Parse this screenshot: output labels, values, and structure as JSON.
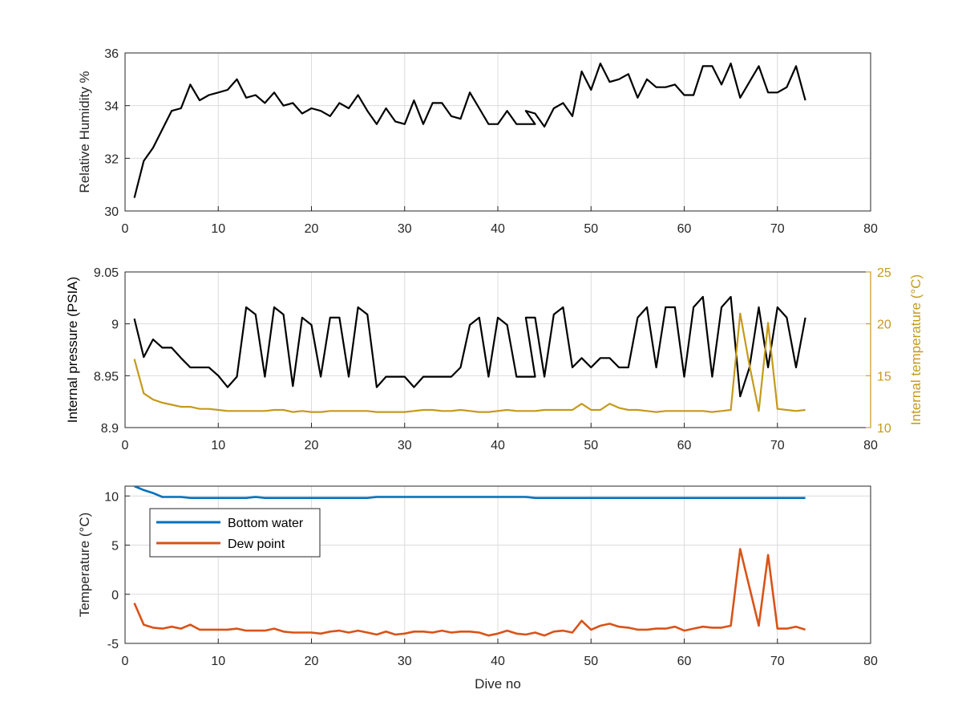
{
  "chart_data": [
    {
      "type": "line",
      "xlabel": "",
      "ylabel": "Relative Humidity %",
      "xlim": [
        0,
        80
      ],
      "ylim": [
        30,
        36
      ],
      "xticks": [
        "0",
        "10",
        "20",
        "30",
        "40",
        "50",
        "60",
        "70",
        "80"
      ],
      "yticks": [
        "30",
        "32",
        "34",
        "36"
      ],
      "grid": true,
      "colors": {
        "rh": "#000000"
      },
      "series": [
        {
          "key": "rh",
          "x": [
            1,
            2,
            3,
            4,
            5,
            6,
            7,
            8,
            9,
            10,
            11,
            12,
            13,
            14,
            15,
            16,
            17,
            18,
            19,
            20,
            21,
            22,
            23,
            24,
            25,
            26,
            27,
            28,
            29,
            30,
            31,
            32,
            33,
            34,
            35,
            36,
            37,
            38,
            39,
            40,
            41,
            42,
            43,
            44,
            43,
            44,
            45,
            46,
            47,
            48,
            49,
            50,
            51,
            52,
            53,
            54,
            55,
            56,
            57,
            58,
            59,
            60,
            61,
            62,
            63,
            64,
            65,
            66,
            67,
            68,
            69,
            70,
            71,
            72,
            73
          ],
          "y": [
            30.5,
            31.9,
            32.4,
            33.1,
            33.8,
            33.9,
            34.8,
            34.2,
            34.4,
            34.5,
            34.6,
            35.0,
            34.3,
            34.4,
            34.1,
            34.5,
            34.0,
            34.1,
            33.7,
            33.9,
            33.8,
            33.6,
            34.1,
            33.9,
            34.4,
            33.8,
            33.3,
            33.9,
            33.4,
            33.3,
            34.2,
            33.3,
            34.1,
            34.1,
            33.6,
            33.5,
            34.5,
            33.9,
            33.3,
            33.3,
            33.8,
            33.3,
            33.3,
            33.3,
            33.8,
            33.7,
            33.2,
            33.9,
            34.1,
            33.6,
            35.3,
            34.6,
            35.6,
            34.9,
            35.0,
            35.2,
            34.3,
            35.0,
            34.7,
            34.7,
            34.8,
            34.4,
            34.4,
            35.5,
            35.5,
            34.8,
            35.6,
            34.3,
            34.9,
            35.5,
            34.5,
            34.5,
            34.7,
            35.5,
            34.2
          ]
        }
      ]
    },
    {
      "type": "line",
      "xlabel": "",
      "ylabel": "Internal pressure (PSIA)",
      "y2label": "Internal temperature (°C)",
      "xlim": [
        0,
        80
      ],
      "ylim": [
        8.9,
        9.05
      ],
      "y2lim": [
        10,
        25
      ],
      "xticks": [
        "0",
        "10",
        "20",
        "30",
        "40",
        "50",
        "60",
        "70",
        "80"
      ],
      "yticks": [
        "8.9",
        "8.95",
        "9",
        "9.05"
      ],
      "y2ticks": [
        "10",
        "15",
        "20",
        "25"
      ],
      "grid": true,
      "colors": {
        "pressure": "#000000",
        "temperature": "#c59a1a"
      },
      "series": [
        {
          "key": "pressure",
          "axis": "left",
          "x": [
            1,
            2,
            3,
            4,
            5,
            6,
            7,
            8,
            9,
            10,
            11,
            12,
            13,
            14,
            15,
            16,
            17,
            18,
            19,
            20,
            21,
            22,
            23,
            24,
            25,
            26,
            27,
            28,
            29,
            30,
            31,
            32,
            33,
            34,
            35,
            36,
            37,
            38,
            39,
            40,
            41,
            42,
            43,
            44,
            43,
            44,
            45,
            46,
            47,
            48,
            49,
            50,
            51,
            52,
            53,
            54,
            55,
            56,
            57,
            58,
            59,
            60,
            61,
            62,
            63,
            64,
            65,
            66,
            67,
            68,
            69,
            70,
            71,
            72,
            73
          ],
          "y": [
            9.005,
            8.968,
            8.985,
            8.977,
            8.977,
            8.967,
            8.958,
            8.958,
            8.958,
            8.95,
            8.939,
            8.949,
            9.016,
            9.009,
            8.949,
            9.016,
            9.009,
            8.94,
            9.006,
            8.999,
            8.949,
            9.006,
            9.006,
            8.949,
            9.016,
            9.009,
            8.939,
            8.949,
            8.949,
            8.949,
            8.939,
            8.949,
            8.949,
            8.949,
            8.949,
            8.958,
            8.999,
            9.006,
            8.949,
            9.006,
            8.999,
            8.949,
            8.949,
            8.949,
            9.006,
            9.006,
            8.949,
            9.009,
            9.016,
            8.958,
            8.967,
            8.958,
            8.967,
            8.967,
            8.958,
            8.958,
            9.006,
            9.016,
            8.958,
            9.016,
            9.016,
            8.949,
            9.016,
            9.026,
            8.949,
            9.016,
            9.026,
            8.93,
            8.958,
            9.016,
            8.958,
            9.016,
            9.006,
            8.958,
            9.006
          ]
        },
        {
          "key": "temperature",
          "axis": "right",
          "x": [
            1,
            2,
            3,
            4,
            5,
            6,
            7,
            8,
            9,
            10,
            11,
            12,
            13,
            14,
            15,
            16,
            17,
            18,
            19,
            20,
            21,
            22,
            23,
            24,
            25,
            26,
            27,
            28,
            29,
            30,
            31,
            32,
            33,
            34,
            35,
            36,
            37,
            38,
            39,
            40,
            41,
            42,
            43,
            44,
            45,
            46,
            47,
            48,
            49,
            50,
            51,
            52,
            53,
            54,
            55,
            56,
            57,
            58,
            59,
            60,
            61,
            62,
            63,
            64,
            65,
            66,
            67,
            68,
            69,
            70,
            71,
            72,
            73
          ],
          "y": [
            16.6,
            13.3,
            12.7,
            12.4,
            12.2,
            12.0,
            12.0,
            11.8,
            11.8,
            11.7,
            11.6,
            11.6,
            11.6,
            11.6,
            11.6,
            11.7,
            11.7,
            11.5,
            11.6,
            11.5,
            11.5,
            11.6,
            11.6,
            11.6,
            11.6,
            11.6,
            11.5,
            11.5,
            11.5,
            11.5,
            11.6,
            11.7,
            11.7,
            11.6,
            11.6,
            11.7,
            11.6,
            11.5,
            11.5,
            11.6,
            11.7,
            11.6,
            11.6,
            11.6,
            11.7,
            11.7,
            11.7,
            11.7,
            12.3,
            11.7,
            11.7,
            12.3,
            11.9,
            11.7,
            11.7,
            11.6,
            11.5,
            11.6,
            11.6,
            11.6,
            11.6,
            11.6,
            11.5,
            11.6,
            11.7,
            21.0,
            16.0,
            11.6,
            20.1,
            11.8,
            11.7,
            11.6,
            11.7
          ]
        }
      ]
    },
    {
      "type": "line",
      "xlabel": "Dive no",
      "ylabel": "Temperature (°C)",
      "xlim": [
        0,
        80
      ],
      "ylim": [
        -5,
        11
      ],
      "xticks": [
        "0",
        "10",
        "20",
        "30",
        "40",
        "50",
        "60",
        "70",
        "80"
      ],
      "yticks": [
        "-5",
        "0",
        "5",
        "10"
      ],
      "grid": true,
      "legend_position": "top-left",
      "colors": {
        "bottom": "#0072bd",
        "dew": "#d95319"
      },
      "series": [
        {
          "key": "bottom",
          "name": "Bottom water",
          "x": [
            1,
            2,
            3,
            4,
            5,
            6,
            7,
            8,
            9,
            10,
            11,
            12,
            13,
            14,
            15,
            16,
            17,
            18,
            19,
            20,
            21,
            22,
            23,
            24,
            25,
            26,
            27,
            28,
            29,
            30,
            31,
            32,
            33,
            34,
            35,
            36,
            37,
            38,
            39,
            40,
            41,
            42,
            43,
            44,
            45,
            46,
            47,
            48,
            49,
            50,
            51,
            52,
            53,
            54,
            55,
            56,
            57,
            58,
            59,
            60,
            61,
            62,
            63,
            64,
            65,
            66,
            67,
            68,
            69,
            70,
            71,
            72,
            73
          ],
          "y": [
            11.0,
            10.6,
            10.3,
            9.9,
            9.9,
            9.9,
            9.8,
            9.8,
            9.8,
            9.8,
            9.8,
            9.8,
            9.8,
            9.9,
            9.8,
            9.8,
            9.8,
            9.8,
            9.8,
            9.8,
            9.8,
            9.8,
            9.8,
            9.8,
            9.8,
            9.8,
            9.9,
            9.9,
            9.9,
            9.9,
            9.9,
            9.9,
            9.9,
            9.9,
            9.9,
            9.9,
            9.9,
            9.9,
            9.9,
            9.9,
            9.9,
            9.9,
            9.9,
            9.8,
            9.8,
            9.8,
            9.8,
            9.8,
            9.8,
            9.8,
            9.8,
            9.8,
            9.8,
            9.8,
            9.8,
            9.8,
            9.8,
            9.8,
            9.8,
            9.8,
            9.8,
            9.8,
            9.8,
            9.8,
            9.8,
            9.8,
            9.8,
            9.8,
            9.8,
            9.8,
            9.8,
            9.8,
            9.8
          ]
        },
        {
          "key": "dew",
          "name": "Dew point",
          "x": [
            1,
            2,
            3,
            4,
            5,
            6,
            7,
            8,
            9,
            10,
            11,
            12,
            13,
            14,
            15,
            16,
            17,
            18,
            19,
            20,
            21,
            22,
            23,
            24,
            25,
            26,
            27,
            28,
            29,
            30,
            31,
            32,
            33,
            34,
            35,
            36,
            37,
            38,
            39,
            40,
            41,
            42,
            43,
            44,
            45,
            46,
            47,
            48,
            49,
            50,
            51,
            52,
            53,
            54,
            55,
            56,
            57,
            58,
            59,
            60,
            61,
            62,
            63,
            64,
            65,
            66,
            67,
            68,
            69,
            70,
            71,
            72,
            73
          ],
          "y": [
            -0.9,
            -3.1,
            -3.4,
            -3.5,
            -3.3,
            -3.5,
            -3.1,
            -3.6,
            -3.6,
            -3.6,
            -3.6,
            -3.5,
            -3.7,
            -3.7,
            -3.7,
            -3.5,
            -3.8,
            -3.9,
            -3.9,
            -3.9,
            -4.0,
            -3.8,
            -3.7,
            -3.9,
            -3.7,
            -3.9,
            -4.1,
            -3.8,
            -4.1,
            -4.0,
            -3.8,
            -3.8,
            -3.9,
            -3.7,
            -3.9,
            -3.8,
            -3.8,
            -3.9,
            -4.2,
            -4.0,
            -3.7,
            -4.0,
            -4.1,
            -3.9,
            -4.2,
            -3.8,
            -3.7,
            -3.9,
            -2.7,
            -3.6,
            -3.2,
            -3.0,
            -3.3,
            -3.4,
            -3.6,
            -3.6,
            -3.5,
            -3.5,
            -3.3,
            -3.7,
            -3.5,
            -3.3,
            -3.4,
            -3.4,
            -3.2,
            4.6,
            0.7,
            -3.2,
            4.0,
            -3.5,
            -3.5,
            -3.3,
            -3.6
          ]
        }
      ]
    }
  ]
}
